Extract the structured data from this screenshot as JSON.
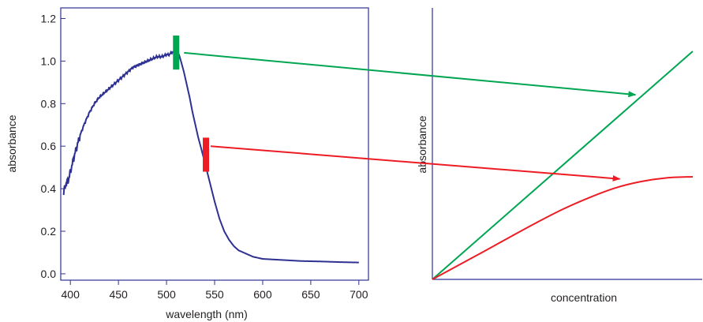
{
  "chart_data": [
    {
      "type": "line",
      "xlabel": "wavelength (nm)",
      "ylabel": "absorbance",
      "xlim": [
        390,
        710
      ],
      "ylim": [
        -0.03,
        1.25
      ],
      "x_ticks": [
        400,
        450,
        500,
        550,
        600,
        650,
        700
      ],
      "y_ticks": [
        0.0,
        0.2,
        0.4,
        0.6,
        0.8,
        1.0,
        1.2
      ],
      "grid": false,
      "series": [
        {
          "color": "#2e3192",
          "x": [
            393,
            395,
            398,
            400,
            405,
            410,
            415,
            420,
            425,
            430,
            435,
            440,
            445,
            450,
            455,
            460,
            465,
            470,
            475,
            480,
            485,
            490,
            495,
            500,
            503,
            505,
            507,
            509,
            511,
            513,
            515,
            518,
            521,
            524,
            527,
            530,
            533,
            536,
            540,
            545,
            550,
            555,
            560,
            565,
            570,
            575,
            580,
            590,
            600,
            620,
            640,
            660,
            680,
            700
          ],
          "y": [
            0.38,
            0.42,
            0.44,
            0.48,
            0.57,
            0.65,
            0.71,
            0.76,
            0.8,
            0.83,
            0.85,
            0.87,
            0.89,
            0.91,
            0.93,
            0.95,
            0.97,
            0.98,
            0.99,
            1.0,
            1.01,
            1.02,
            1.02,
            1.03,
            1.03,
            1.04,
            1.04,
            1.05,
            1.04,
            1.03,
            1.0,
            0.95,
            0.89,
            0.83,
            0.76,
            0.7,
            0.64,
            0.59,
            0.52,
            0.43,
            0.34,
            0.26,
            0.2,
            0.16,
            0.13,
            0.11,
            0.1,
            0.08,
            0.07,
            0.065,
            0.06,
            0.058,
            0.055,
            0.053
          ]
        }
      ],
      "markers": [
        {
          "wavelength": 510,
          "y_range": [
            0.96,
            1.12
          ],
          "color": "#00a651"
        },
        {
          "wavelength": 541,
          "y_range": [
            0.48,
            0.64
          ],
          "color": "#ed1c24"
        }
      ]
    },
    {
      "type": "line",
      "xlabel": "concentration",
      "ylabel": "absorbance",
      "xlim": [
        0,
        1
      ],
      "ylim": [
        0,
        1
      ],
      "grid": false,
      "series": [
        {
          "color": "#00a651",
          "x": [
            0,
            1
          ],
          "y": [
            0,
            0.84
          ]
        },
        {
          "color": "#ed1c24",
          "x": [
            0,
            0.1,
            0.2,
            0.3,
            0.4,
            0.5,
            0.6,
            0.7,
            0.8,
            0.9,
            1.0
          ],
          "y": [
            0,
            0.052,
            0.104,
            0.157,
            0.209,
            0.258,
            0.3,
            0.336,
            0.36,
            0.374,
            0.378
          ]
        }
      ]
    }
  ],
  "annotations": [
    {
      "name": "green-arrow",
      "color": "#00a651",
      "from_chart": 0,
      "from_wavelength": 510,
      "from_absorbance": 1.05,
      "to_chart": 1,
      "to_concentration": 0.78,
      "to_absorbance": 0.68
    },
    {
      "name": "red-arrow",
      "color": "#ed1c24",
      "from_chart": 0,
      "from_wavelength": 541,
      "from_absorbance": 0.6,
      "to_chart": 1,
      "to_concentration": 0.72,
      "to_absorbance": 0.37
    }
  ]
}
